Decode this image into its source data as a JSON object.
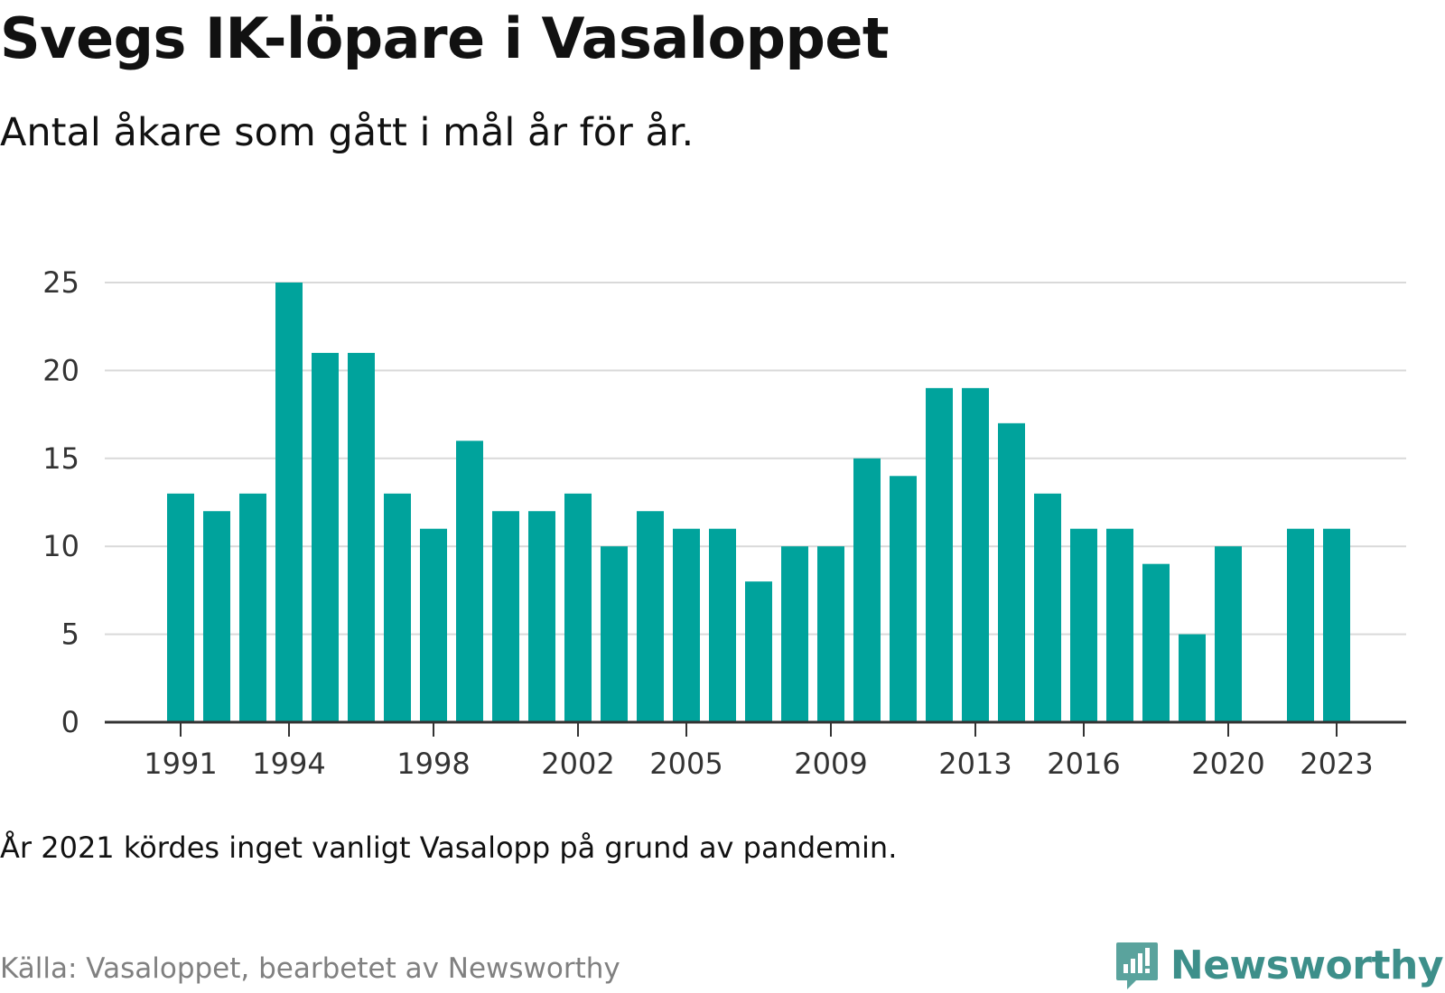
{
  "title": "Svegs IK-löpare i Vasaloppet",
  "subtitle": "Antal åkare som gått i mål år för år.",
  "note": "År 2021 kördes inget vanligt Vasalopp på grund av pandemin.",
  "source": "Källa: Vasaloppet, bearbetet av Newsworthy",
  "brand": "Newsworthy",
  "colors": {
    "bar": "#00a39c",
    "grid": "#d9d9d9",
    "axis": "#333333",
    "brand": "#3d8f8a"
  },
  "chart_data": {
    "type": "bar",
    "x": [
      1991,
      1992,
      1993,
      1994,
      1995,
      1996,
      1997,
      1998,
      1999,
      2000,
      2001,
      2002,
      2003,
      2004,
      2005,
      2006,
      2007,
      2008,
      2009,
      2010,
      2011,
      2012,
      2013,
      2014,
      2015,
      2016,
      2017,
      2018,
      2019,
      2020,
      2021,
      2022,
      2023
    ],
    "values": [
      13,
      12,
      13,
      25,
      21,
      21,
      13,
      11,
      16,
      12,
      12,
      13,
      10,
      12,
      11,
      11,
      8,
      10,
      10,
      15,
      14,
      19,
      19,
      17,
      13,
      11,
      11,
      9,
      5,
      10,
      null,
      11,
      11
    ],
    "xticks": [
      1991,
      1994,
      1998,
      2002,
      2005,
      2009,
      2013,
      2016,
      2020,
      2023
    ],
    "yticks": [
      0,
      5,
      10,
      15,
      20,
      25
    ],
    "ylim": [
      0,
      25
    ],
    "grid": true,
    "legend": "none"
  }
}
